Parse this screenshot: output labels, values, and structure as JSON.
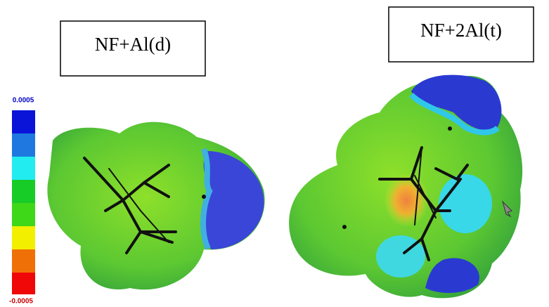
{
  "labels": [
    "NF+Al(d)",
    "NF+2Al(t)"
  ],
  "colorbar": {
    "max": 0.0005,
    "min": -0.0005
  }
}
